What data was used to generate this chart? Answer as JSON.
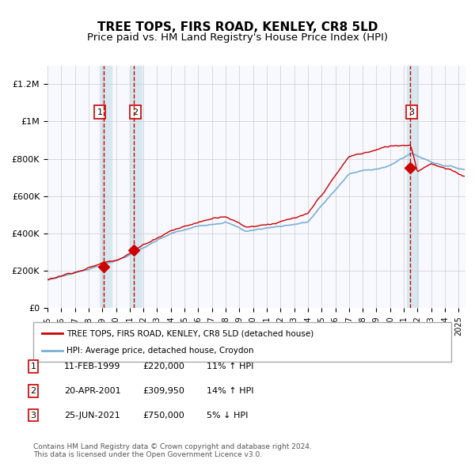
{
  "title": "TREE TOPS, FIRS ROAD, KENLEY, CR8 5LD",
  "subtitle": "Price paid vs. HM Land Registry's House Price Index (HPI)",
  "title_fontsize": 11,
  "subtitle_fontsize": 9.5,
  "ylim": [
    0,
    1300000
  ],
  "yticks": [
    0,
    200000,
    400000,
    600000,
    800000,
    1000000,
    1200000
  ],
  "ytick_labels": [
    "£0",
    "£200K",
    "£400K",
    "£600K",
    "£800K",
    "£1M",
    "£1.2M"
  ],
  "xstart_year": 1995.0,
  "xend_year": 2025.5,
  "sale_dates": [
    1999.11,
    2001.3,
    2021.48
  ],
  "sale_prices": [
    220000,
    309950,
    750000
  ],
  "sale_labels": [
    "1",
    "2",
    "3"
  ],
  "red_line_color": "#cc0000",
  "blue_line_color": "#7ab0d4",
  "highlight_band_color": "#d8e8f0",
  "vline_color": "#cc0000",
  "grid_color": "#cccccc",
  "background_color": "#f8f8ff",
  "legend_label_red": "TREE TOPS, FIRS ROAD, KENLEY, CR8 5LD (detached house)",
  "legend_label_blue": "HPI: Average price, detached house, Croydon",
  "table_rows": [
    [
      "1",
      "11-FEB-1999",
      "£220,000",
      "11%",
      "↑",
      "HPI"
    ],
    [
      "2",
      "20-APR-2001",
      "£309,950",
      "14%",
      "↑",
      "HPI"
    ],
    [
      "3",
      "25-JUN-2021",
      "£750,000",
      "5%",
      "↓",
      "HPI"
    ]
  ],
  "footnote": "Contains HM Land Registry data © Crown copyright and database right 2024.\nThis data is licensed under the Open Government Licence v3.0."
}
